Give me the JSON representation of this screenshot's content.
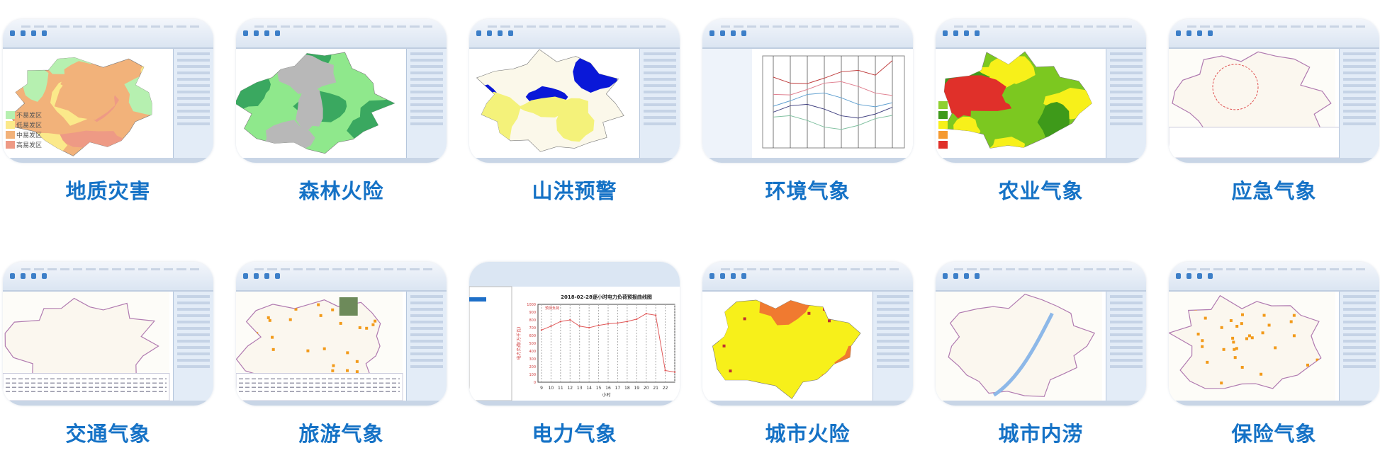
{
  "brand_color": "#1572c6",
  "cards": [
    {
      "label": "地质灾害",
      "type": "map",
      "fill": "#f2b27a",
      "patches": [
        "#fbe98a",
        "#ee9a85",
        "#b6f0b0",
        "#f2b27a"
      ],
      "legend": [
        {
          "text": "不易发区",
          "color": "#b6f0b0"
        },
        {
          "text": "低易发区",
          "color": "#fbe98a"
        },
        {
          "text": "中易发区",
          "color": "#f2b27a"
        },
        {
          "text": "高易发区",
          "color": "#ee9a85"
        }
      ],
      "side": true
    },
    {
      "label": "森林火险",
      "type": "map",
      "fill": "#8fe88c",
      "patches": [
        "#3aa860",
        "#3aa860",
        "#b8b8b8"
      ],
      "side": true
    },
    {
      "label": "山洪预警",
      "type": "map",
      "fill": "#fbf8ea",
      "patches": [
        "#0a18d8",
        "#0a18d8",
        "#f4f27a"
      ],
      "side": true
    },
    {
      "label": "环境气象",
      "type": "env-chart",
      "side": false
    },
    {
      "label": "农业气象",
      "type": "map",
      "fill": "#7cc820",
      "patches": [
        "#f7f01a",
        "#f7f01a",
        "#3e9a1a",
        "#e0302a"
      ],
      "legend": [
        {
          "color": "#8fd030"
        },
        {
          "color": "#3e9a1a"
        },
        {
          "color": "#f7f01a"
        },
        {
          "color": "#f59a30"
        },
        {
          "color": "#e0302a"
        }
      ],
      "side": true
    },
    {
      "label": "应急气象",
      "type": "pale",
      "fill": "#fbf7ef",
      "circle": true,
      "side": true
    },
    {
      "label": "交通气象",
      "type": "pale",
      "fill": "#fbf7ef",
      "side": true,
      "table": true
    },
    {
      "label": "旅游气象",
      "type": "pale",
      "fill": "#fbf7ef",
      "dots": "#f29a1a",
      "side": true,
      "table": true,
      "photo": true
    },
    {
      "label": "电力气象",
      "type": "power-chart",
      "chart": {
        "type": "line",
        "title": "2018-02-28逐小时电力负荷预报曲线图",
        "legend": "预测负荷",
        "xlabel": "小时",
        "ylabel": "电力负荷(万千瓦)",
        "x": [
          9,
          10,
          11,
          12,
          13,
          14,
          15,
          16,
          17,
          18,
          19,
          20,
          21,
          22,
          23
        ],
        "y": [
          670,
          720,
          780,
          800,
          720,
          700,
          730,
          750,
          760,
          780,
          810,
          880,
          860,
          150,
          130
        ],
        "ylim": [
          0,
          1000
        ],
        "color": "#e05a5a"
      }
    },
    {
      "label": "城市火险",
      "type": "map",
      "fill": "#f7f01a",
      "patches": [
        "#f07a30",
        "#f7f01a"
      ],
      "dots": "#c03030",
      "side": true
    },
    {
      "label": "城市内涝",
      "type": "pale",
      "fill": "#fbf7ef",
      "river": true,
      "side": true
    },
    {
      "label": "保险气象",
      "type": "pale",
      "fill": "#fbf7ef",
      "dots": "#f29a1a",
      "side": true
    }
  ]
}
